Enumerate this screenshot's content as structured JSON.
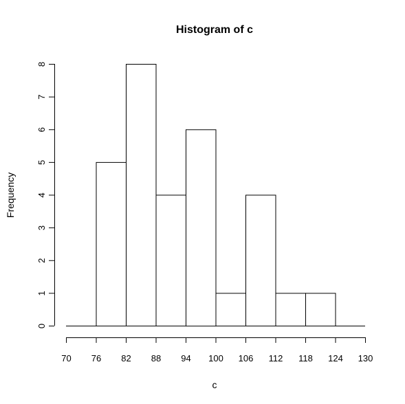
{
  "chart_data": {
    "type": "bar",
    "title": "Histogram of c",
    "xlabel": "c",
    "ylabel": "Frequency",
    "bin_edges": [
      70,
      76,
      82,
      88,
      94,
      100,
      106,
      112,
      118,
      124,
      130
    ],
    "values": [
      0,
      5,
      8,
      4,
      6,
      1,
      4,
      1,
      1,
      0
    ],
    "x_ticks": [
      70,
      76,
      82,
      88,
      94,
      100,
      106,
      112,
      118,
      124,
      130
    ],
    "y_ticks": [
      0,
      1,
      2,
      3,
      4,
      5,
      6,
      7,
      8
    ],
    "xlim": [
      70,
      130
    ],
    "ylim": [
      0,
      8
    ],
    "grid": false,
    "legend": "none",
    "bar_fill": "#ffffff",
    "bar_stroke": "#000000"
  }
}
